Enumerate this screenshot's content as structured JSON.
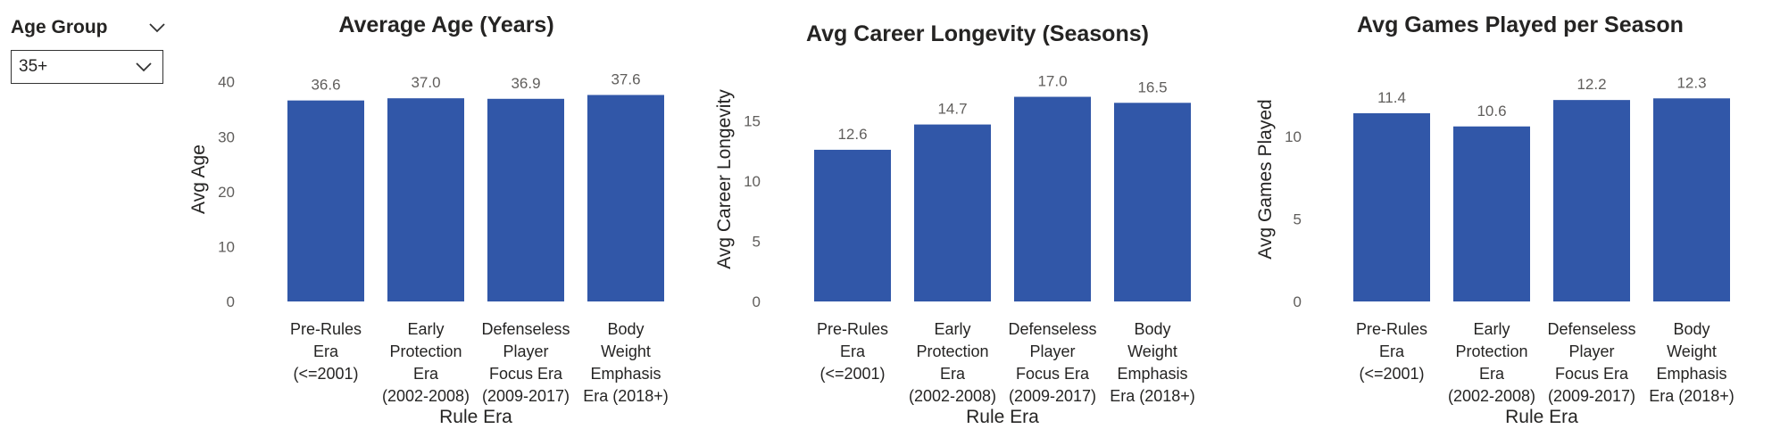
{
  "slicer": {
    "title": "Age Group",
    "selected": "35+",
    "chevron_icon": "chevron-down-icon"
  },
  "bar_color": "#3157a8",
  "chart_data": [
    {
      "type": "bar",
      "title": "Average Age (Years)",
      "xlabel": "Rule Era",
      "ylabel": "Avg Age",
      "categories": [
        [
          "Pre-Rules",
          "Era",
          "(<=2001)"
        ],
        [
          "Early",
          "Protection",
          "Era",
          "(2002-2008)"
        ],
        [
          "Defenseless",
          "Player",
          "Focus Era",
          "(2009-2017)"
        ],
        [
          "Body",
          "Weight",
          "Emphasis",
          "Era (2018+)"
        ]
      ],
      "values": [
        36.6,
        37.0,
        36.9,
        37.6
      ],
      "value_labels": [
        "36.6",
        "37.0",
        "36.9",
        "37.6"
      ],
      "yticks": [
        0,
        10,
        20,
        30,
        40
      ],
      "ylim": [
        0,
        44.5
      ],
      "grid": false
    },
    {
      "type": "bar",
      "title": "Avg Career Longevity (Seasons)",
      "xlabel": "Rule Era",
      "ylabel": "Avg Career Longevity",
      "categories": [
        [
          "Pre-Rules",
          "Era",
          "(<=2001)"
        ],
        [
          "Early",
          "Protection",
          "Era",
          "(2002-2008)"
        ],
        [
          "Defenseless",
          "Player",
          "Focus Era",
          "(2009-2017)"
        ],
        [
          "Body",
          "Weight",
          "Emphasis",
          "Era (2018+)"
        ]
      ],
      "values": [
        12.6,
        14.7,
        17.0,
        16.5
      ],
      "value_labels": [
        "12.6",
        "14.7",
        "17.0",
        "16.5"
      ],
      "yticks": [
        0,
        5,
        10,
        15
      ],
      "ylim": [
        0,
        20.3
      ],
      "grid": false
    },
    {
      "type": "bar",
      "title": "Avg Games Played per Season",
      "xlabel": "Rule Era",
      "ylabel": "Avg Games Played",
      "categories": [
        [
          "Pre-Rules",
          "Era",
          "(<=2001)"
        ],
        [
          "Early",
          "Protection",
          "Era",
          "(2002-2008)"
        ],
        [
          "Defenseless",
          "Player",
          "Focus Era",
          "(2009-2017)"
        ],
        [
          "Body",
          "Weight",
          "Emphasis",
          "Era (2018+)"
        ]
      ],
      "values": [
        11.4,
        10.6,
        12.2,
        12.3
      ],
      "value_labels": [
        "11.4",
        "10.6",
        "12.2",
        "12.3"
      ],
      "yticks": [
        0,
        5,
        10
      ],
      "ylim": [
        0,
        14.8
      ],
      "grid": false
    }
  ]
}
